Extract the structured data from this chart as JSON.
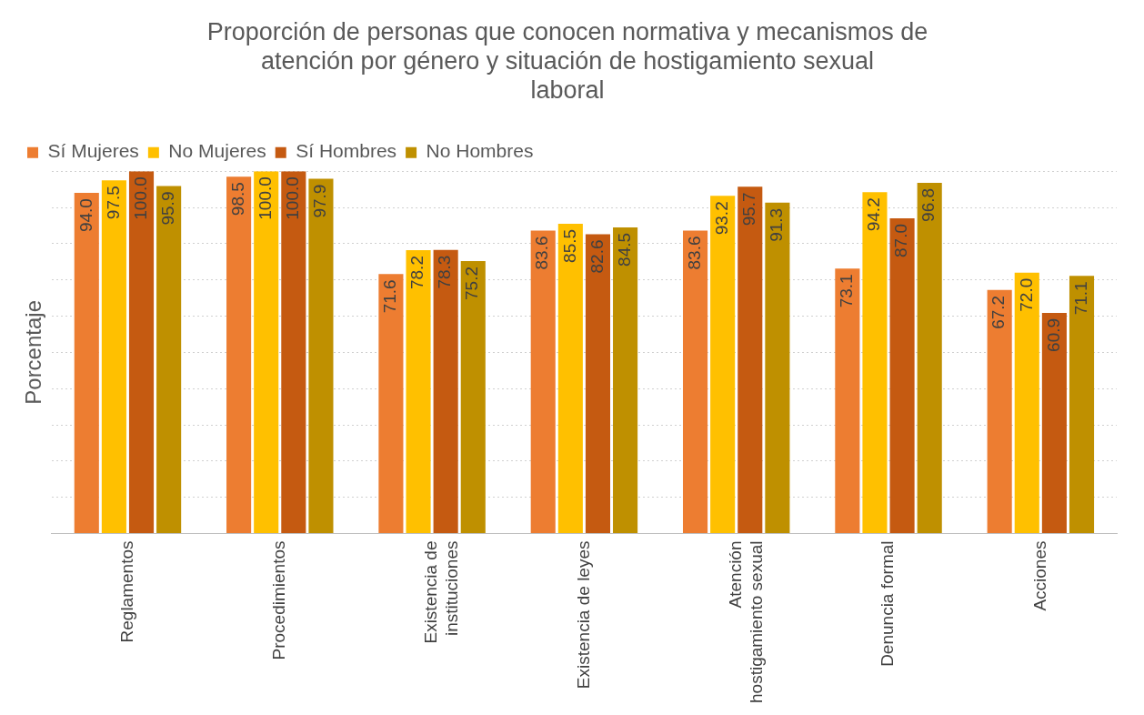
{
  "chart_data": {
    "type": "bar",
    "title": "Proporción de personas que conocen normativa y mecanismos de atención por género y situación de hostigamiento sexual laboral",
    "ylabel": "Porcentaje",
    "categories": [
      "Reglamentos",
      "Procedimientos",
      "Existencia de instituciones",
      "Existencia de leyes",
      "Atención hostigamiento sexual",
      "Denuncia formal",
      "Acciones"
    ],
    "series": [
      {
        "name": "Sí Mujeres",
        "color": "#ed7d31",
        "values": [
          94.0,
          98.5,
          71.6,
          83.6,
          83.6,
          73.1,
          67.2
        ],
        "value_labels": [
          "94.0",
          "98.5",
          "71.6",
          "83.6",
          "83.6",
          "73.1",
          "67.2"
        ]
      },
      {
        "name": "No Mujeres",
        "color": "#ffc000",
        "values": [
          97.5,
          100.0,
          78.2,
          85.5,
          93.2,
          94.2,
          72.0
        ],
        "value_labels": [
          "97.5",
          "100.0",
          "78.2",
          "85.5",
          "93.2",
          "94.2",
          "72.0"
        ]
      },
      {
        "name": "Sí Hombres",
        "color": "#c55a11",
        "values": [
          100.0,
          100.0,
          78.3,
          82.6,
          95.7,
          87.0,
          60.9
        ],
        "value_labels": [
          "100.0",
          "100.0",
          "78.3",
          "82.6",
          "95.7",
          "87.0",
          "60.9"
        ]
      },
      {
        "name": "No Hombres",
        "color": "#bf9000",
        "values": [
          95.9,
          97.9,
          75.2,
          84.5,
          91.3,
          96.8,
          71.1
        ],
        "value_labels": [
          "95.9",
          "97.9",
          "75.2",
          "84.5",
          "91.3",
          "96.8",
          "71.1"
        ]
      }
    ],
    "ylim": [
      0,
      100
    ],
    "yticks": [
      {
        "value": 0,
        "label": null
      },
      {
        "value": 10,
        "label": null
      },
      {
        "value": 20,
        "label": null
      },
      {
        "value": 30,
        "label": null
      },
      {
        "value": 40,
        "label": null
      },
      {
        "value": 50,
        "label": null
      },
      {
        "value": 60,
        "label": null
      },
      {
        "value": 70,
        "label": null
      },
      {
        "value": 80,
        "label": null
      },
      {
        "value": 90,
        "label": null
      },
      {
        "value": 100,
        "label": null
      }
    ],
    "tick_labels": "x",
    "grid": "y",
    "legend": "top left"
  }
}
